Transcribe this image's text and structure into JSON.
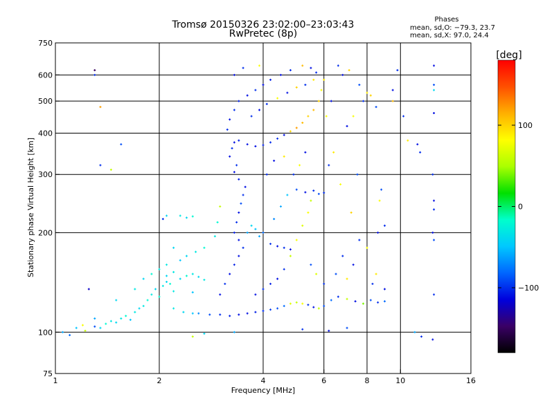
{
  "chart_data": {
    "type": "scatter",
    "title": "Tromsø 20150326 23:02:00–23:03:43",
    "subtitle": "RwPretec (8p)",
    "xlabel": "Frequency [MHz]",
    "ylabel": "Stationary phase Virtual Height [km]",
    "x_scale": "log",
    "y_scale": "log",
    "xlim": [
      1,
      16
    ],
    "ylim": [
      75,
      750
    ],
    "x_ticks": [
      1,
      2,
      4,
      6,
      8,
      10,
      16
    ],
    "x_tick_labels": [
      "1",
      "2",
      "4",
      "6",
      "8",
      "10",
      "16"
    ],
    "x_gridlines": [
      2,
      4,
      6,
      8,
      10
    ],
    "y_ticks": [
      75,
      100,
      200,
      300,
      400,
      500,
      600,
      750
    ],
    "y_tick_labels": [
      "75",
      "100",
      "200",
      "300",
      "400",
      "500",
      "600",
      "750"
    ],
    "y_gridlines": [
      100,
      200,
      300,
      400,
      500,
      600
    ],
    "grid": true,
    "stats": {
      "heading": "Phases",
      "line_o": "mean, sd,O: −79.3, 23.7",
      "line_x": "mean, sd,X:  97.0, 24.4"
    },
    "colorbar": {
      "label": "[deg]",
      "range": [
        -180,
        180
      ],
      "ticks": [
        100,
        0,
        -100
      ],
      "tick_labels": [
        "100",
        "0",
        "−100"
      ],
      "colormap": [
        "#000000",
        "#3a0066",
        "#0000dd",
        "#0066ff",
        "#00c8ff",
        "#00ffcc",
        "#00e000",
        "#aaff00",
        "#ffff00",
        "#ffb000",
        "#ff5000",
        "#ff0000"
      ]
    },
    "series_note": "points colored by phase",
    "series": [
      {
        "name": "",
        "points": [
          [
            1.05,
            100,
            -60
          ],
          [
            1.1,
            98,
            -80
          ],
          [
            1.15,
            103,
            -50
          ],
          [
            1.22,
            101,
            60
          ],
          [
            1.3,
            104,
            -90
          ],
          [
            1.35,
            103,
            -40
          ],
          [
            1.4,
            106,
            -20
          ],
          [
            1.45,
            108,
            -30
          ],
          [
            1.5,
            107,
            -40
          ],
          [
            1.55,
            110,
            -30
          ],
          [
            1.6,
            112,
            -20
          ],
          [
            1.65,
            109,
            -50
          ],
          [
            1.7,
            115,
            -30
          ],
          [
            1.75,
            118,
            -40
          ],
          [
            1.8,
            120,
            -30
          ],
          [
            1.85,
            125,
            -20
          ],
          [
            1.9,
            130,
            -30
          ],
          [
            1.95,
            135,
            -40
          ],
          [
            2.0,
            128,
            -20
          ],
          [
            2.05,
            138,
            -30
          ],
          [
            2.1,
            142,
            -40
          ],
          [
            2.15,
            140,
            -20
          ],
          [
            2.2,
            133,
            -30
          ],
          [
            2.3,
            145,
            -40
          ],
          [
            2.4,
            148,
            -20
          ],
          [
            2.5,
            150,
            -30
          ],
          [
            2.6,
            147,
            -40
          ],
          [
            2.7,
            144,
            -30
          ],
          [
            2.5,
            132,
            -50
          ],
          [
            2.2,
            118,
            -30
          ],
          [
            2.35,
            115,
            -40
          ],
          [
            2.5,
            114,
            -50
          ],
          [
            2.6,
            114,
            -70
          ],
          [
            2.8,
            113,
            -90
          ],
          [
            3.0,
            113,
            -100
          ],
          [
            3.2,
            112,
            -105
          ],
          [
            3.4,
            113,
            -110
          ],
          [
            3.6,
            114,
            -110
          ],
          [
            3.8,
            115,
            -105
          ],
          [
            4.0,
            116,
            -100
          ],
          [
            4.2,
            117,
            -95
          ],
          [
            4.4,
            118,
            -90
          ],
          [
            4.6,
            120,
            -80
          ],
          [
            4.8,
            122,
            70
          ],
          [
            5.0,
            123,
            60
          ],
          [
            5.2,
            122,
            80
          ],
          [
            5.4,
            121,
            -100
          ],
          [
            5.6,
            119,
            -110
          ],
          [
            5.8,
            118,
            60
          ],
          [
            6.0,
            120,
            -90
          ],
          [
            6.3,
            125,
            -80
          ],
          [
            6.6,
            128,
            -100
          ],
          [
            7.0,
            126,
            60
          ],
          [
            7.4,
            124,
            -110
          ],
          [
            7.8,
            122,
            40
          ],
          [
            8.2,
            125,
            -90
          ],
          [
            8.6,
            123,
            -100
          ],
          [
            9.0,
            124,
            -80
          ],
          [
            3.0,
            130,
            -110
          ],
          [
            3.1,
            140,
            -100
          ],
          [
            3.2,
            150,
            -110
          ],
          [
            3.3,
            160,
            -105
          ],
          [
            3.4,
            170,
            -110
          ],
          [
            3.5,
            180,
            -100
          ],
          [
            3.4,
            190,
            -110
          ],
          [
            3.3,
            200,
            -105
          ],
          [
            3.35,
            215,
            -100
          ],
          [
            3.4,
            230,
            -110
          ],
          [
            3.45,
            245,
            -90
          ],
          [
            3.5,
            260,
            -100
          ],
          [
            3.55,
            275,
            -110
          ],
          [
            3.4,
            290,
            -105
          ],
          [
            3.3,
            305,
            -110
          ],
          [
            3.35,
            320,
            -100
          ],
          [
            3.2,
            340,
            -110
          ],
          [
            3.25,
            360,
            -100
          ],
          [
            3.3,
            375,
            -110
          ],
          [
            3.4,
            380,
            -105
          ],
          [
            3.6,
            370,
            -110
          ],
          [
            3.8,
            365,
            -110
          ],
          [
            4.0,
            368,
            -105
          ],
          [
            4.2,
            375,
            -100
          ],
          [
            4.4,
            385,
            -100
          ],
          [
            4.6,
            395,
            -110
          ],
          [
            4.8,
            405,
            100
          ],
          [
            5.0,
            415,
            120
          ],
          [
            5.2,
            430,
            110
          ],
          [
            5.4,
            450,
            100
          ],
          [
            5.6,
            470,
            110
          ],
          [
            5.8,
            500,
            100
          ],
          [
            5.9,
            540,
            80
          ],
          [
            6.0,
            580,
            90
          ],
          [
            5.7,
            610,
            -100
          ],
          [
            5.5,
            630,
            -110
          ],
          [
            5.2,
            640,
            110
          ],
          [
            4.8,
            620,
            -100
          ],
          [
            4.5,
            600,
            -110
          ],
          [
            4.2,
            580,
            -105
          ],
          [
            4.0,
            560,
            -110
          ],
          [
            3.8,
            540,
            -100
          ],
          [
            3.6,
            520,
            -110
          ],
          [
            3.4,
            500,
            -105
          ],
          [
            3.3,
            470,
            -100
          ],
          [
            3.2,
            440,
            -110
          ],
          [
            3.15,
            410,
            -100
          ],
          [
            3.3,
            600,
            -110
          ],
          [
            3.5,
            630,
            -100
          ],
          [
            3.9,
            640,
            80
          ],
          [
            3.6,
            200,
            -60
          ],
          [
            3.7,
            210,
            -40
          ],
          [
            3.8,
            205,
            -50
          ],
          [
            3.9,
            195,
            -60
          ],
          [
            4.0,
            200,
            -80
          ],
          [
            4.2,
            185,
            -100
          ],
          [
            4.4,
            182,
            -110
          ],
          [
            4.6,
            180,
            -100
          ],
          [
            4.8,
            178,
            -110
          ],
          [
            4.3,
            220,
            -70
          ],
          [
            4.5,
            240,
            -60
          ],
          [
            4.7,
            260,
            -50
          ],
          [
            5.0,
            270,
            -90
          ],
          [
            5.3,
            265,
            -110
          ],
          [
            5.6,
            268,
            -100
          ],
          [
            5.8,
            262,
            -90
          ],
          [
            6.0,
            264,
            -100
          ],
          [
            5.5,
            250,
            60
          ],
          [
            5.4,
            230,
            80
          ],
          [
            5.2,
            210,
            70
          ],
          [
            5.0,
            190,
            80
          ],
          [
            4.8,
            170,
            60
          ],
          [
            4.6,
            155,
            -100
          ],
          [
            4.4,
            145,
            -110
          ],
          [
            4.2,
            140,
            -105
          ],
          [
            4.0,
            135,
            -100
          ],
          [
            3.8,
            130,
            -110
          ],
          [
            5.5,
            160,
            -90
          ],
          [
            5.7,
            150,
            70
          ],
          [
            6.0,
            140,
            -100
          ],
          [
            6.5,
            150,
            -90
          ],
          [
            6.8,
            170,
            -100
          ],
          [
            7.0,
            145,
            90
          ],
          [
            7.3,
            160,
            -110
          ],
          [
            7.6,
            190,
            -100
          ],
          [
            8.0,
            180,
            80
          ],
          [
            8.3,
            140,
            -100
          ],
          [
            8.5,
            150,
            90
          ],
          [
            9.0,
            135,
            -110
          ],
          [
            7.2,
            230,
            100
          ],
          [
            7.5,
            300,
            -90
          ],
          [
            6.7,
            280,
            80
          ],
          [
            6.2,
            320,
            -100
          ],
          [
            6.4,
            350,
            90
          ],
          [
            7.0,
            420,
            -110
          ],
          [
            7.3,
            450,
            80
          ],
          [
            7.8,
            500,
            -100
          ],
          [
            8.2,
            520,
            100
          ],
          [
            8.5,
            480,
            -90
          ],
          [
            9.5,
            500,
            110
          ],
          [
            1.3,
            620,
            -150
          ],
          [
            1.3,
            600,
            -100
          ],
          [
            1.35,
            480,
            120
          ],
          [
            1.35,
            320,
            -100
          ],
          [
            1.55,
            370,
            -90
          ],
          [
            1.45,
            310,
            60
          ],
          [
            2.05,
            220,
            -100
          ],
          [
            2.1,
            225,
            -40
          ],
          [
            2.3,
            225,
            -30
          ],
          [
            2.4,
            222,
            -40
          ],
          [
            2.5,
            224,
            -20
          ],
          [
            2.2,
            180,
            -40
          ],
          [
            2.1,
            160,
            -30
          ],
          [
            2.3,
            165,
            -50
          ],
          [
            2.4,
            170,
            -40
          ],
          [
            2.55,
            175,
            -30
          ],
          [
            2.7,
            180,
            -20
          ],
          [
            2.9,
            195,
            -30
          ],
          [
            2.95,
            215,
            -20
          ],
          [
            3.0,
            240,
            60
          ],
          [
            1.25,
            135,
            -120
          ],
          [
            1.2,
            105,
            80
          ],
          [
            1.3,
            110,
            -60
          ],
          [
            1.5,
            125,
            -40
          ],
          [
            1.7,
            135,
            -30
          ],
          [
            1.8,
            145,
            -40
          ],
          [
            1.9,
            150,
            -20
          ],
          [
            2.0,
            155,
            -30
          ],
          [
            2.1,
            148,
            -40
          ],
          [
            2.2,
            152,
            -30
          ],
          [
            11.0,
            100,
            -60
          ],
          [
            11.2,
            370,
            -110
          ],
          [
            11.4,
            350,
            -100
          ],
          [
            12.5,
            640,
            -110
          ],
          [
            12.5,
            560,
            -90
          ],
          [
            12.5,
            540,
            -40
          ],
          [
            12.5,
            460,
            -110
          ],
          [
            12.4,
            300,
            -100
          ],
          [
            12.5,
            250,
            -110
          ],
          [
            12.5,
            235,
            -100
          ],
          [
            12.4,
            200,
            -110
          ],
          [
            12.5,
            190,
            -90
          ],
          [
            12.5,
            130,
            -100
          ],
          [
            12.4,
            95,
            -110
          ],
          [
            11.5,
            97,
            -100
          ],
          [
            10.5,
            380,
            90
          ],
          [
            9.8,
            620,
            -100
          ],
          [
            9.5,
            540,
            -110
          ],
          [
            10.2,
            450,
            -100
          ],
          [
            8.8,
            270,
            -90
          ],
          [
            8.7,
            250,
            80
          ],
          [
            8.6,
            200,
            -110
          ],
          [
            9.0,
            210,
            -100
          ],
          [
            6.8,
            600,
            -110
          ],
          [
            7.1,
            620,
            100
          ],
          [
            7.6,
            560,
            -90
          ],
          [
            8.0,
            530,
            90
          ],
          [
            6.6,
            640,
            -100
          ],
          [
            6.3,
            500,
            -110
          ],
          [
            6.1,
            450,
            80
          ],
          [
            4.1,
            300,
            -100
          ],
          [
            4.3,
            330,
            -110
          ],
          [
            4.6,
            340,
            90
          ],
          [
            4.9,
            300,
            -100
          ],
          [
            5.1,
            320,
            80
          ],
          [
            5.3,
            350,
            -110
          ],
          [
            3.7,
            450,
            -100
          ],
          [
            3.9,
            470,
            -110
          ],
          [
            4.1,
            490,
            -100
          ],
          [
            4.4,
            510,
            80
          ],
          [
            4.7,
            530,
            -110
          ],
          [
            5.0,
            550,
            100
          ],
          [
            5.3,
            560,
            -100
          ],
          [
            5.6,
            580,
            90
          ],
          [
            3.3,
            100,
            -60
          ],
          [
            2.7,
            99,
            -40
          ],
          [
            2.5,
            97,
            60
          ],
          [
            5.2,
            102,
            -100
          ],
          [
            6.2,
            101,
            -110
          ],
          [
            7.0,
            103,
            -90
          ]
        ]
      }
    ]
  }
}
